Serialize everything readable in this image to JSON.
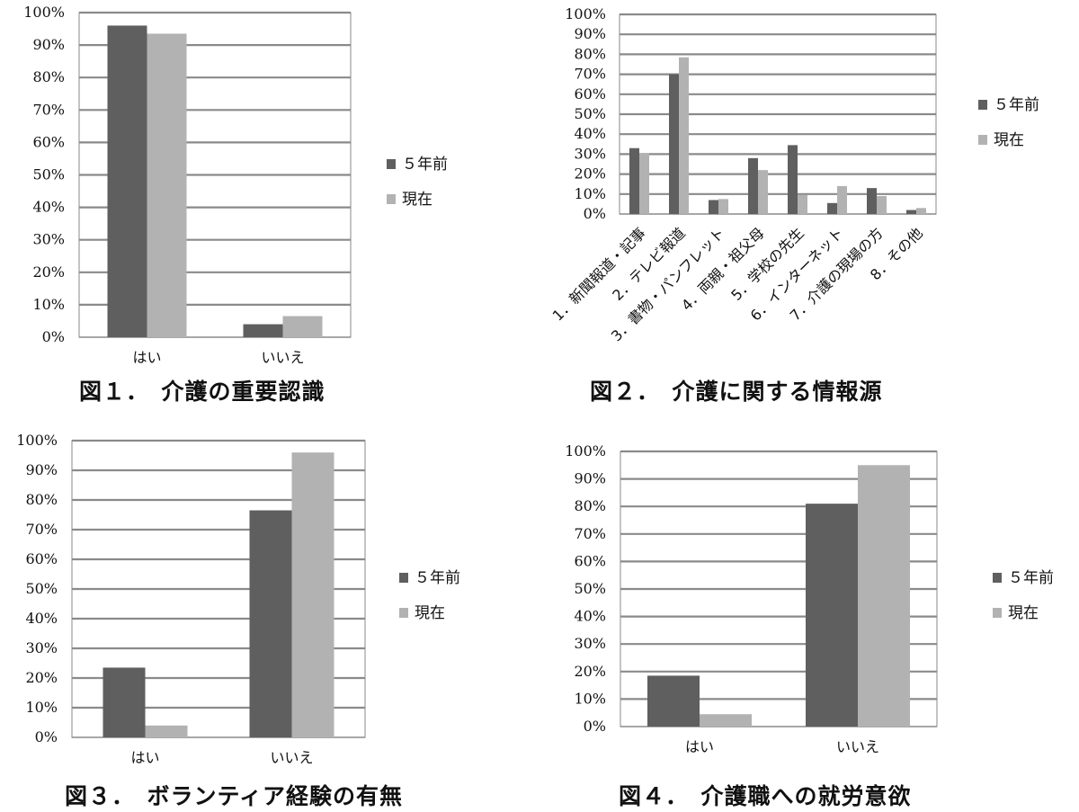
{
  "colors": {
    "series_1": "#5f5f5f",
    "series_2": "#b2b2b2",
    "grid": "#8a8a8a",
    "axis": "#555555"
  },
  "chart_data": [
    {
      "type": "bar",
      "title": "図１．　介護の重要認識",
      "categories": [
        "はい",
        "いいえ"
      ],
      "series": [
        {
          "name": "５年前",
          "values": [
            96,
            4
          ]
        },
        {
          "name": "現在",
          "values": [
            93.5,
            6.5
          ]
        }
      ],
      "yticks": [
        "0%",
        "10%",
        "20%",
        "30%",
        "40%",
        "50%",
        "60%",
        "70%",
        "80%",
        "90%",
        "100%"
      ],
      "ylim": [
        0,
        100
      ],
      "grid": true,
      "legend": "right"
    },
    {
      "type": "bar",
      "title": "図２．　介護に関する情報源",
      "categories": [
        "1．新聞報道・記事",
        "2．テレビ報道",
        "3．書物・パンフレット",
        "4．両親・祖父母",
        "5．学校の先生",
        "6．インターネット",
        "7．介護の現場の方",
        "8．その他"
      ],
      "series": [
        {
          "name": "５年前",
          "values": [
            33,
            70,
            7,
            28,
            34.5,
            5.5,
            13,
            2
          ]
        },
        {
          "name": "現在",
          "values": [
            30.5,
            78.5,
            7.5,
            22,
            9.5,
            14,
            9,
            3
          ]
        }
      ],
      "yticks": [
        "0%",
        "10%",
        "20%",
        "30%",
        "40%",
        "50%",
        "60%",
        "70%",
        "80%",
        "90%",
        "100%"
      ],
      "ylim": [
        0,
        100
      ],
      "grid": true,
      "legend": "right"
    },
    {
      "type": "bar",
      "title": "図３．　ボランティア経験の有無",
      "categories": [
        "はい",
        "いいえ"
      ],
      "series": [
        {
          "name": "５年前",
          "values": [
            23.5,
            76.5
          ]
        },
        {
          "name": "現在",
          "values": [
            4,
            96
          ]
        }
      ],
      "yticks": [
        "0%",
        "10%",
        "20%",
        "30%",
        "40%",
        "50%",
        "60%",
        "70%",
        "80%",
        "90%",
        "100%"
      ],
      "ylim": [
        0,
        100
      ],
      "grid": true,
      "legend": "right"
    },
    {
      "type": "bar",
      "title": "図４．　介護職への就労意欲",
      "categories": [
        "はい",
        "いいえ"
      ],
      "series": [
        {
          "name": "５年前",
          "values": [
            18.5,
            81
          ]
        },
        {
          "name": "現在",
          "values": [
            4.5,
            95
          ]
        }
      ],
      "yticks": [
        "0%",
        "10%",
        "20%",
        "30%",
        "40%",
        "50%",
        "60%",
        "70%",
        "80%",
        "90%",
        "100%"
      ],
      "ylim": [
        0,
        100
      ],
      "grid": true,
      "legend": "right"
    }
  ]
}
